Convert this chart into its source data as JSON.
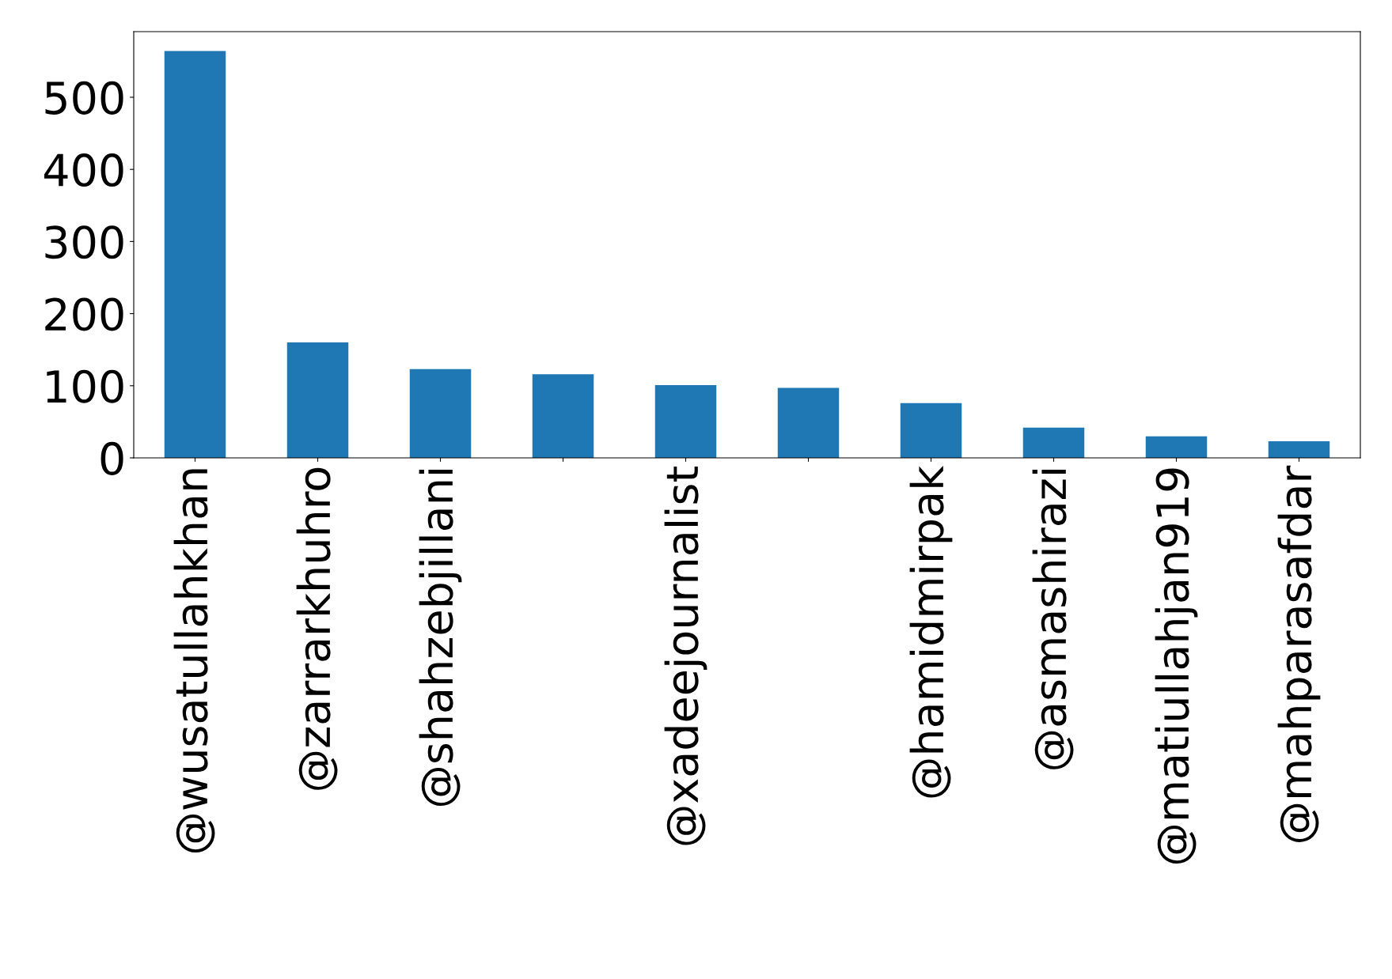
{
  "chart_data": {
    "type": "bar",
    "categories": [
      "@wusatullahkhan",
      "@zarrarkhuhro",
      "@shahzebjillani",
      null,
      "@xadeejournalist",
      null,
      "@hamidmirpak",
      "@asmashirazi",
      "@matiullahjan919",
      "@mahparasafdar"
    ],
    "values": [
      564,
      160,
      123,
      116,
      101,
      97,
      76,
      42,
      30,
      23
    ],
    "color": "#1f77b4",
    "ylim": [
      0,
      591
    ],
    "yticks": [
      0,
      100,
      200,
      300,
      400,
      500
    ],
    "grid": false,
    "legend": false
  }
}
